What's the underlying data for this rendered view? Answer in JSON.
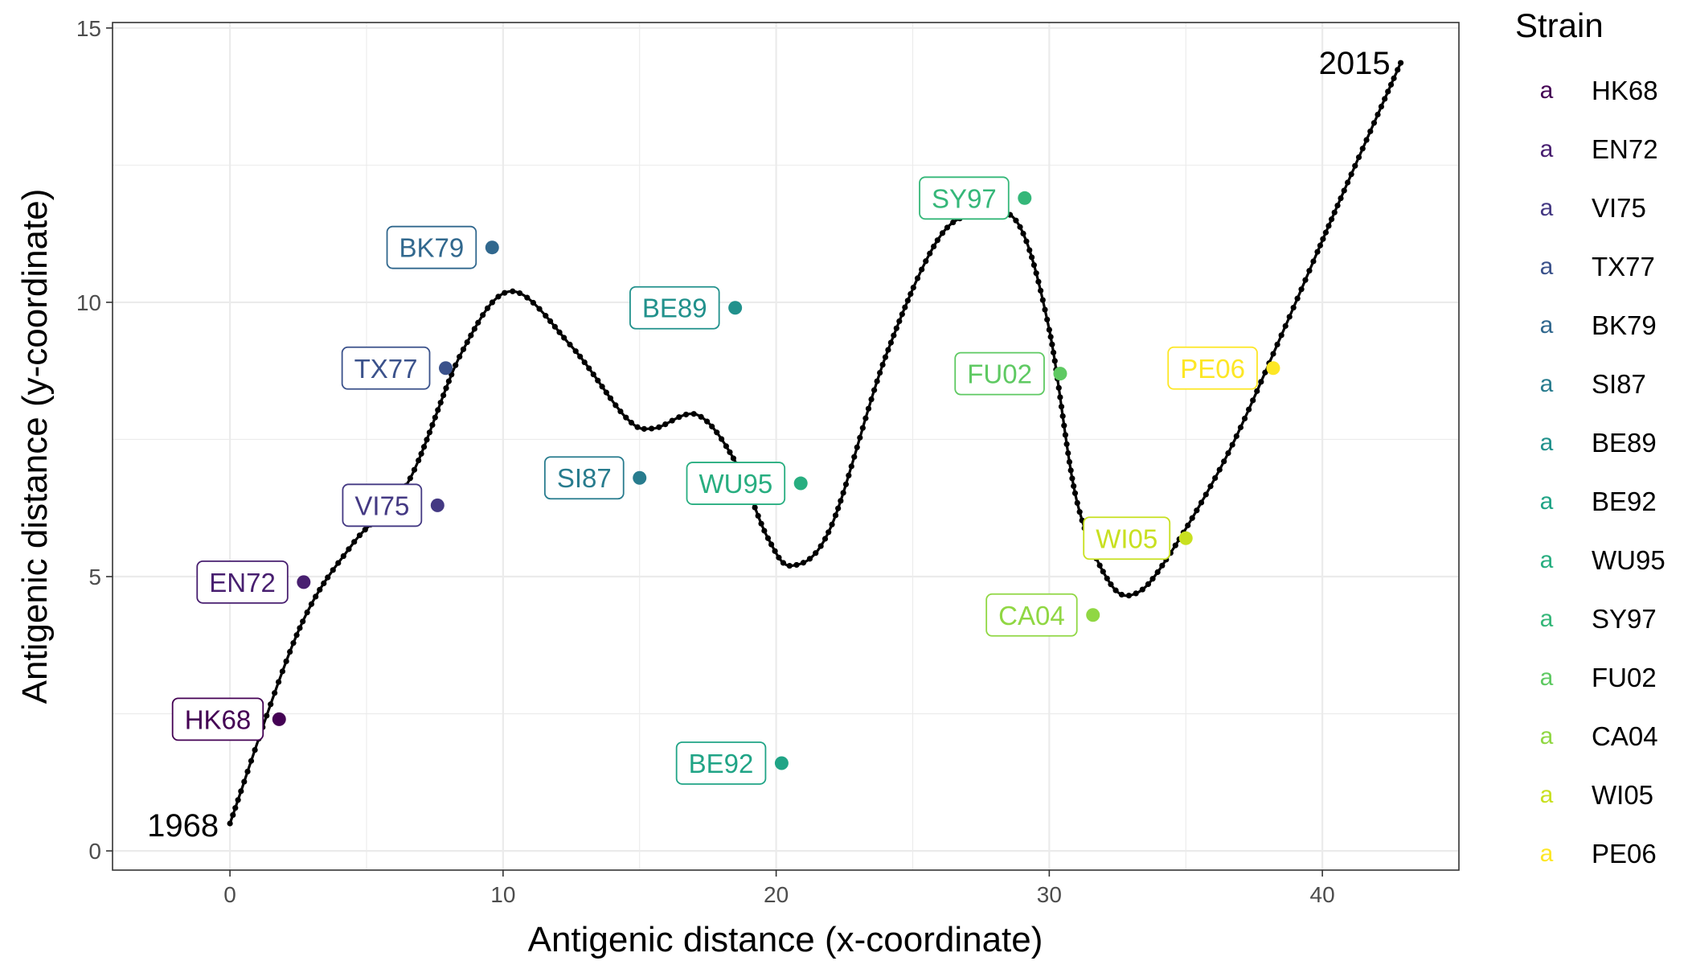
{
  "chart_data": {
    "type": "scatter",
    "xlabel": "Antigenic distance (x-coordinate)",
    "ylabel": "Antigenic distance (y-coordinate)",
    "xlim": [
      -4.3,
      45.0
    ],
    "ylim": [
      -0.35,
      15.1
    ],
    "x_ticks": [
      0,
      10,
      20,
      30,
      40
    ],
    "y_ticks": [
      0,
      5,
      10,
      15
    ],
    "grid": true,
    "legend": {
      "title": "Strain",
      "position": "right",
      "key_glyph": "a"
    },
    "strains": [
      {
        "name": "HK68",
        "x": 1.8,
        "y": 2.4,
        "color": "#440154"
      },
      {
        "name": "EN72",
        "x": 2.7,
        "y": 4.9,
        "color": "#481f70"
      },
      {
        "name": "VI75",
        "x": 7.6,
        "y": 6.3,
        "color": "#443983"
      },
      {
        "name": "TX77",
        "x": 7.9,
        "y": 8.8,
        "color": "#3b528b"
      },
      {
        "name": "BK79",
        "x": 9.6,
        "y": 11.0,
        "color": "#31688e"
      },
      {
        "name": "SI87",
        "x": 15.0,
        "y": 6.8,
        "color": "#287c8e"
      },
      {
        "name": "BE89",
        "x": 18.5,
        "y": 9.9,
        "color": "#21918c"
      },
      {
        "name": "BE92",
        "x": 20.2,
        "y": 1.6,
        "color": "#20a486"
      },
      {
        "name": "WU95",
        "x": 20.9,
        "y": 6.7,
        "color": "#28ae80"
      },
      {
        "name": "SY97",
        "x": 29.1,
        "y": 11.9,
        "color": "#35b779"
      },
      {
        "name": "FU02",
        "x": 30.4,
        "y": 8.7,
        "color": "#5ec962"
      },
      {
        "name": "CA04",
        "x": 31.6,
        "y": 4.3,
        "color": "#90d743"
      },
      {
        "name": "WI05",
        "x": 35.0,
        "y": 5.7,
        "color": "#c8e020"
      },
      {
        "name": "PE06",
        "x": 38.2,
        "y": 8.8,
        "color": "#fde725"
      }
    ],
    "path": {
      "start_label": "1968",
      "end_label": "2015",
      "color": "#000000",
      "x": [
        0.0,
        2.5,
        4.5,
        6.5,
        8.5,
        10.3,
        12.5,
        14.5,
        15.5,
        17.1,
        18.5,
        19.7,
        20.6,
        22.0,
        24.0,
        26.0,
        27.6,
        28.9,
        30.0,
        31.0,
        32.2,
        33.2,
        34.4,
        36.5,
        38.5,
        40.5,
        42.9
      ],
      "y": [
        0.5,
        4.0,
        5.6,
        6.7,
        9.1,
        10.2,
        9.2,
        7.9,
        7.7,
        7.95,
        7.1,
        5.7,
        5.2,
        5.9,
        9.0,
        11.2,
        11.6,
        11.4,
        9.5,
        6.4,
        4.9,
        4.7,
        5.4,
        7.2,
        9.4,
        11.7,
        14.4
      ]
    }
  }
}
